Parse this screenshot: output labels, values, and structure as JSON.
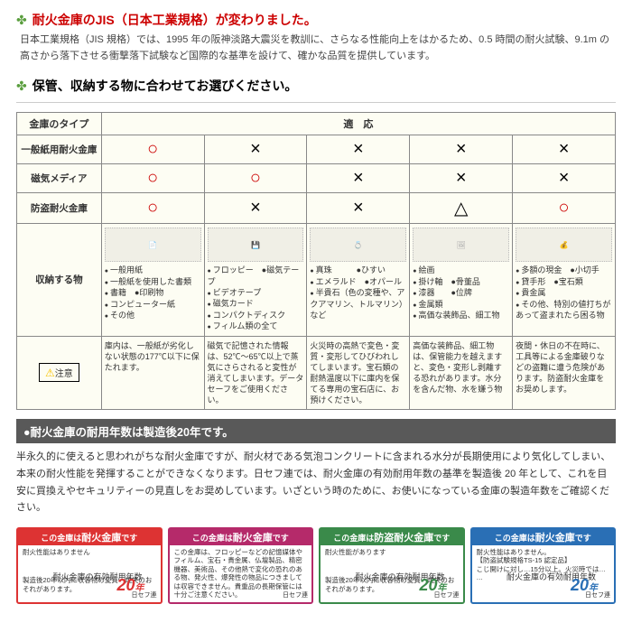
{
  "section1": {
    "title": "耐火金庫のJIS（日本工業規格）が変わりました。",
    "body": "日本工業規格（JIS 規格）では、1995 年の阪神淡路大震災を教訓に、さらなる性能向上をはかるため、0.5 時間の耐火試験、9.1m の高さから落下させる衝撃落下試験など国際的な基準を設けて、確かな品質を提供しています。"
  },
  "section2": {
    "title": "保管、収納する物に合わせてお選びください。",
    "header_left": "金庫のタイプ",
    "header_right": "適　応",
    "rows": {
      "r1": "一般紙用耐火金庫",
      "r2": "磁気メディア",
      "r3": "防盗耐火金庫",
      "storage": "収納する物",
      "caution": "注意"
    },
    "marks": {
      "circle": "○",
      "cross": "×",
      "triangle": "△"
    },
    "grid": [
      [
        "○",
        "×",
        "×",
        "×",
        "×"
      ],
      [
        "○",
        "○",
        "×",
        "×",
        "×"
      ],
      [
        "○",
        "×",
        "×",
        "△",
        "○"
      ]
    ],
    "storage_cols": [
      {
        "items": [
          "一般用紙",
          "一般紙を使用した書類",
          "書籍　●印刷物",
          "コンピューター紙",
          "その他"
        ]
      },
      {
        "items": [
          "フロッピー　●磁気テープ",
          "ビデオテープ",
          "磁気カード",
          "コンパクトディスク",
          "フィルム類の全て"
        ]
      },
      {
        "items": [
          "真珠　　　●ひすい",
          "エメラルド　●オパール",
          "半貴石（色の変種や、アクアマリン、トルマリン）など"
        ]
      },
      {
        "items": [
          "絵画",
          "掛け軸　●骨董品",
          "漆器　　●位牌",
          "金属類",
          "高価な装飾品、細工物"
        ]
      },
      {
        "items": [
          "多額の現金　●小切手",
          "貸手形　●宝石類",
          "貴金属",
          "その他、特別の値打ちがあって盗まれたら困る物"
        ]
      }
    ],
    "notes": [
      "庫内は、一般紙が劣化しない状態の177℃以下に保たれます。",
      "磁気で記憶された情報は、52℃〜65℃以上で蒸気にさらされると変性が消えてしまいます。データセーフをご使用ください。",
      "火災時の高熱で変色・変質・変形してひびわれしてしまいます。宝石類の耐熱温度以下に庫内を保てる専用の宝石店に、お預けください。",
      "高価な装飾品、細工物は、保管能力を越えますと、変色・変形し剥離する恐れがあります。水分を含んだ物、水を嫌う物",
      "夜間・休日の不在時に、工具等による金庫破りなどの盗難に遭う危険があります。防盗耐火金庫をお奨めします。"
    ]
  },
  "section3": {
    "heading": "●耐火金庫の耐用年数は製造後20年です。",
    "para": "半永久的に使えると思われがちな耐火金庫ですが、耐火材である気泡コンクリートに含まれる水分が長期使用により気化してしまい、本来の耐火性能を発揮することができなくなります。日セフ連では、耐火金庫の有効耐用年数の基準を製造後 20 年として、これを目安に買換えやセキュリティーの見直しをお奨めしています。いざという時のために、お使いになっている金庫の製造年数をご確認ください。"
  },
  "labels": [
    {
      "cls": "l-red",
      "top": "この金庫は耐火金庫です",
      "firesafe": "耐火金庫",
      "body": "耐火性能はありません",
      "year_label": "耐火金庫の有効耐用年数",
      "twenty": "20",
      "year_suffix": "年",
      "foot": "製造後20年以内に収容物の変質・焼失のおそれがあります。",
      "brand": "日セフ連"
    },
    {
      "cls": "l-mag",
      "top": "この金庫は耐火金庫です",
      "firesafe": "耐火金庫",
      "body": "この金庫は、フロッピーなどの記憶媒体やフィルム、宝石・貴金属、仏壇製品、精密機器、美術品、その他熱で変化の恐れのある物、発火性、爆発性の物品につきましては収容できません。貴重品の長期保管には十分ご注意ください。",
      "year_label": "",
      "twenty": "",
      "year_suffix": "",
      "foot": "",
      "brand": "日セフ連"
    },
    {
      "cls": "l-grn",
      "top": "この金庫は防盗耐火金庫です",
      "firesafe": "防盗耐火金庫",
      "body": "耐火性能があります",
      "year_label": "耐火金庫の有効耐用年数",
      "twenty": "20",
      "year_suffix": "年",
      "foot": "製造後20年以内に収容物の変質・焼失のおそれがあります。",
      "brand": "日セフ連"
    },
    {
      "cls": "l-blu",
      "top": "この金庫は耐火金庫です",
      "firesafe": "耐火金庫",
      "body": "耐火性能はありません。\n【防盗試験規格TS-15 認定品】\nこじ開けに対し…15分以上。火災時では… …",
      "year_label": "耐火金庫の有効耐用年数",
      "twenty": "20",
      "year_suffix": "年",
      "foot": "",
      "brand": "日セフ連"
    }
  ]
}
